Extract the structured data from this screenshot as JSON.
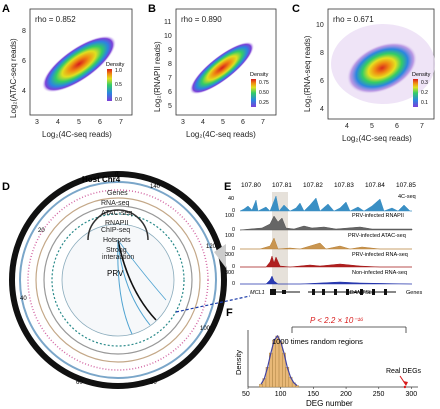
{
  "panels": {
    "a": {
      "letter": "A",
      "rho": "rho = 0.852",
      "ylabel": "Log₂(ATAC-seq reads)",
      "xlabel": "Log₂(4C-seq reads)",
      "yticks": [
        "4",
        "6",
        "8"
      ],
      "xticks": [
        "3",
        "4",
        "5",
        "6",
        "7"
      ],
      "legend_title": "Density",
      "legend_ticks": [
        "1.0",
        "0.5",
        "0.0"
      ]
    },
    "b": {
      "letter": "B",
      "rho": "rho = 0.890",
      "ylabel": "Log₂(RNAPII reads)",
      "xlabel": "Log₂(4C-seq reads)",
      "yticks": [
        "11",
        "10",
        "9",
        "8",
        "7",
        "6",
        "5"
      ],
      "xticks": [
        "3",
        "4",
        "5",
        "6",
        "7"
      ],
      "legend_title": "Density",
      "legend_ticks": [
        "0.75",
        "0.50",
        "0.25"
      ]
    },
    "c": {
      "letter": "C",
      "rho": "rho = 0.671",
      "ylabel": "Log₂(RNA-seq reads)",
      "xlabel": "Log₂(4C-seq reads)",
      "yticks": [
        "10",
        "8",
        "6",
        "4"
      ],
      "xticks": [
        "4",
        "5",
        "6",
        "7"
      ],
      "legend_title": "Density",
      "legend_ticks": [
        "0.3",
        "0.2",
        "0.1"
      ]
    },
    "d": {
      "letter": "D",
      "title": "Host Chr4",
      "tracks": [
        "Genes",
        "RNA-seq",
        "ATAC-seq",
        "RNAPII",
        "ChIP-seq",
        "Hotspots",
        "Strong",
        "interaction"
      ],
      "center": "PRV",
      "ring_ticks": [
        "0",
        "140",
        "20",
        "40",
        "60",
        "80",
        "100",
        "120"
      ]
    },
    "e": {
      "letter": "E",
      "xticks": [
        "107.80",
        "107.81",
        "107.82",
        "107.83",
        "107.84",
        "107.85"
      ],
      "tracks": [
        {
          "label": "4C-seq",
          "ymax": "40",
          "ymin": "0",
          "color": "#3a8fc4"
        },
        {
          "label": "PRV-infected RNAPII",
          "ymax": "100",
          "ymin": "0",
          "color": "#555555"
        },
        {
          "label": "PRV-infected ATAC-seq",
          "ymax": "100",
          "ymin": "0",
          "color": "#b8823a"
        },
        {
          "label": "PRV-infected RNA-seq",
          "ymax": "300",
          "ymin": "0",
          "color": "#a31818"
        },
        {
          "label": "Non-infected RNA-seq",
          "ymax": "300",
          "ymin": "0",
          "color": "#2233aa"
        }
      ],
      "genes": [
        "MCL1",
        "ADAMTSL4"
      ],
      "genes_label": "Genes"
    },
    "f": {
      "letter": "F",
      "pvalue": "P < 2.2 × 10⁻¹⁶",
      "annotation": "1000 times random regions",
      "real": "Real DEGs",
      "ylabel": "Density",
      "xlabel": "DEG number",
      "xticks": [
        "50",
        "100",
        "150",
        "200",
        "250",
        "300"
      ]
    }
  },
  "chart_data": [
    {
      "type": "heatmap",
      "title": "",
      "xlabel": "Log2(4C-seq reads)",
      "ylabel": "Log2(ATAC-seq reads)",
      "annotation": "rho = 0.852",
      "xlim": [
        2.5,
        7.6
      ],
      "ylim": [
        2.5,
        9.5
      ]
    },
    {
      "type": "heatmap",
      "title": "",
      "xlabel": "Log2(4C-seq reads)",
      "ylabel": "Log2(RNAPII reads)",
      "annotation": "rho = 0.890",
      "xlim": [
        2.5,
        7.6
      ],
      "ylim": [
        4.5,
        11.5
      ]
    },
    {
      "type": "heatmap",
      "title": "",
      "xlabel": "Log2(4C-seq reads)",
      "ylabel": "Log2(RNA-seq reads)",
      "annotation": "rho = 0.671",
      "xlim": [
        3.2,
        7.6
      ],
      "ylim": [
        3,
        11
      ]
    },
    {
      "type": "bar",
      "title": "",
      "xlabel": "DEG number",
      "ylabel": "Density",
      "categories": [
        70,
        75,
        80,
        85,
        90,
        95,
        100,
        105,
        110,
        115,
        120,
        125
      ],
      "values": [
        0.002,
        0.006,
        0.014,
        0.024,
        0.033,
        0.036,
        0.032,
        0.024,
        0.014,
        0.007,
        0.003,
        0.001
      ],
      "xlim": [
        50,
        310
      ],
      "real_value": 290
    }
  ]
}
